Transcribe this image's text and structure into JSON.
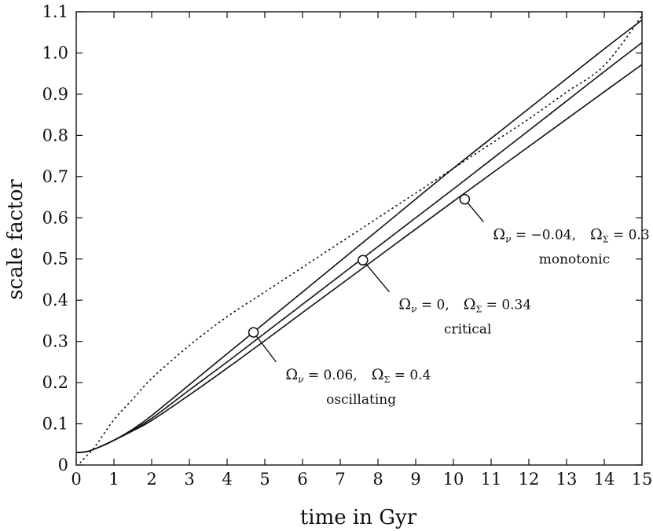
{
  "chart_data": {
    "type": "line",
    "xlabel": "time in Gyr",
    "ylabel": "scale factor",
    "xlim": [
      0,
      15
    ],
    "ylim": [
      0,
      1.1
    ],
    "xticks": [
      0,
      1,
      2,
      3,
      4,
      5,
      6,
      7,
      8,
      9,
      10,
      11,
      12,
      13,
      14,
      15
    ],
    "yticks": [
      0,
      0.1,
      0.2,
      0.3,
      0.4,
      0.5,
      0.6,
      0.7,
      0.8,
      0.9,
      1.0,
      1.1
    ],
    "ytick_labels": [
      "0",
      "0.1",
      "0.2",
      "0.3",
      "0.4",
      "0.5",
      "0.6",
      "0.7",
      "0.8",
      "0.9",
      "1.0",
      "1.1"
    ],
    "grid": false,
    "series": [
      {
        "style": "solid",
        "x": [
          0,
          0.3,
          0.6,
          1.0,
          1.5,
          2.0,
          3.0,
          4.0,
          5.0,
          6.0,
          8.0,
          10.0,
          12.0,
          14.0,
          15.0
        ],
        "y": [
          0.03,
          0.033,
          0.043,
          0.06,
          0.087,
          0.12,
          0.195,
          0.27,
          0.345,
          0.42,
          0.57,
          0.72,
          0.865,
          1.01,
          1.08
        ]
      },
      {
        "style": "solid",
        "x": [
          0,
          0.3,
          0.6,
          1.0,
          1.5,
          2.0,
          3.0,
          4.0,
          5.0,
          6.0,
          8.0,
          10.0,
          12.0,
          14.0,
          15.0
        ],
        "y": [
          0.03,
          0.033,
          0.043,
          0.06,
          0.085,
          0.113,
          0.182,
          0.25,
          0.32,
          0.39,
          0.53,
          0.67,
          0.812,
          0.955,
          1.025
        ]
      },
      {
        "style": "solid",
        "x": [
          0,
          0.3,
          0.6,
          1.0,
          1.5,
          2.0,
          3.0,
          4.0,
          5.0,
          6.0,
          8.0,
          10.0,
          12.0,
          14.0,
          15.0
        ],
        "y": [
          0.03,
          0.033,
          0.043,
          0.06,
          0.083,
          0.108,
          0.17,
          0.235,
          0.302,
          0.37,
          0.505,
          0.64,
          0.773,
          0.906,
          0.972
        ]
      },
      {
        "style": "dotted",
        "x": [
          0.1,
          0.25,
          0.5,
          1.0,
          1.5,
          2.0,
          3.0,
          4.0,
          5.0,
          6.0,
          7.0,
          8.0,
          9.0,
          10.0,
          11.0,
          12.0,
          13.0,
          14.0,
          15.0
        ],
        "y": [
          0.005,
          0.02,
          0.045,
          0.11,
          0.16,
          0.21,
          0.29,
          0.36,
          0.42,
          0.48,
          0.54,
          0.6,
          0.66,
          0.72,
          0.78,
          0.84,
          0.905,
          0.97,
          1.09
        ]
      }
    ],
    "markers": [
      {
        "x": 4.7,
        "y": 0.322
      },
      {
        "x": 7.6,
        "y": 0.497
      },
      {
        "x": 10.3,
        "y": 0.645
      }
    ],
    "annotations": [
      {
        "line1_omega_v": "= 0.06,",
        "line1_omega_sigma": "= 0.4",
        "line2": "oscillating",
        "leader_to": {
          "x": 5.3,
          "y": 0.25
        }
      },
      {
        "line1_omega_v": "= 0,",
        "line1_omega_sigma": "= 0.34",
        "line2": "critical",
        "leader_to": {
          "x": 8.3,
          "y": 0.42
        }
      },
      {
        "line1_omega_v": "= −0.04,",
        "line1_omega_sigma": "= 0.3",
        "line2": "monotonic",
        "leader_to": {
          "x": 10.8,
          "y": 0.59
        }
      }
    ],
    "symbols": {
      "omega": "Ω",
      "nu": "ν",
      "sigma": "Σ"
    }
  }
}
